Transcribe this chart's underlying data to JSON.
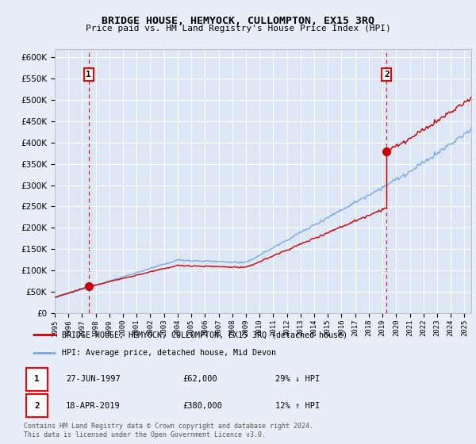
{
  "title": "BRIDGE HOUSE, HEMYOCK, CULLOMPTON, EX15 3RQ",
  "subtitle": "Price paid vs. HM Land Registry's House Price Index (HPI)",
  "red_label": "BRIDGE HOUSE, HEMYOCK, CULLOMPTON, EX15 3RQ (detached house)",
  "blue_label": "HPI: Average price, detached house, Mid Devon",
  "point1_date": "27-JUN-1997",
  "point1_price": "£62,000",
  "point1_hpi": "29% ↓ HPI",
  "point2_date": "18-APR-2019",
  "point2_price": "£380,000",
  "point2_hpi": "12% ↑ HPI",
  "footer": "Contains HM Land Registry data © Crown copyright and database right 2024.\nThis data is licensed under the Open Government Licence v3.0.",
  "ylim": [
    0,
    620000
  ],
  "yticks": [
    0,
    50000,
    100000,
    150000,
    200000,
    250000,
    300000,
    350000,
    400000,
    450000,
    500000,
    550000,
    600000
  ],
  "xlim_start": 1995.0,
  "xlim_end": 2025.5,
  "point1_x": 1997.49,
  "point1_y": 62000,
  "point2_x": 2019.3,
  "point2_y": 380000,
  "point2_pre_y": 248000,
  "bg_color": "#e8eef7",
  "plot_bg_color": "#dce6f5",
  "red_color": "#cc0000",
  "blue_color": "#7aaadd",
  "grid_color": "#ffffff"
}
